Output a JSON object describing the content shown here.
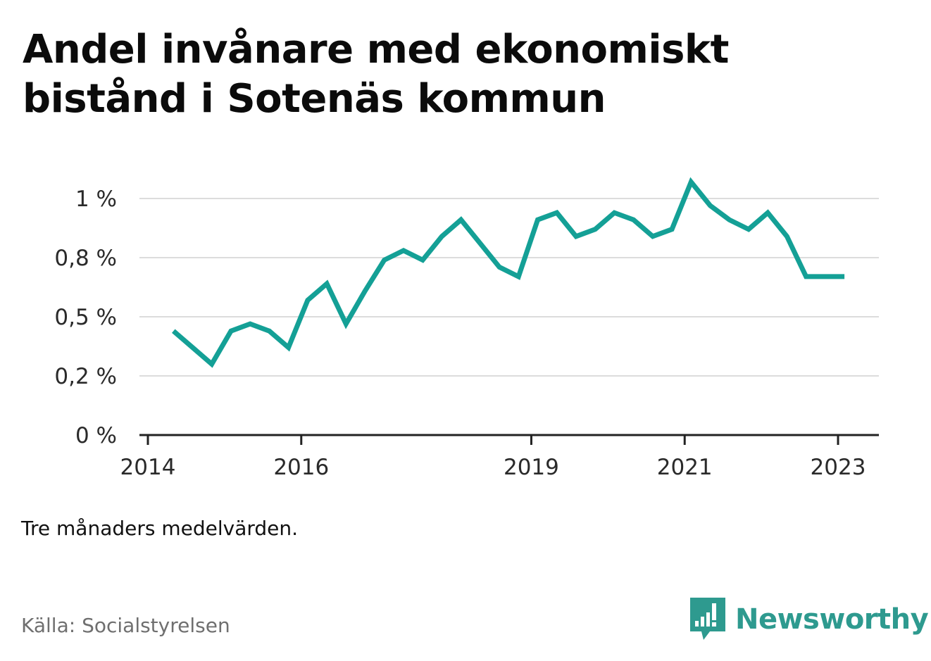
{
  "title": "Andel invånare med ekonomiskt bistånd i Sotenäs kommun",
  "note": "Tre månaders medelvärden.",
  "source": "Källa: Socialstyrelsen",
  "brand": {
    "name": "Newsworthy",
    "color": "#2e9a8f",
    "icon": "newsworthy-logo-icon"
  },
  "colors": {
    "line": "#14a096",
    "grid": "#dcdcdc",
    "axis": "#222222"
  },
  "chart_data": {
    "type": "line",
    "title": "Andel invånare med ekonomiskt bistånd i Sotenäs kommun",
    "xlabel": "",
    "ylabel": "",
    "x_ticks": [
      "2014",
      "2016",
      "2019",
      "2021",
      "2023"
    ],
    "y_ticks": [
      "0 %",
      "0,2 %",
      "0,5 %",
      "0,8 %",
      "1 %"
    ],
    "ylim": [
      0,
      1.07
    ],
    "grid": true,
    "series": [
      {
        "x": [
          "2014-05",
          "2014-08",
          "2014-11",
          "2015-02",
          "2015-05",
          "2015-08",
          "2015-11",
          "2016-02",
          "2016-05",
          "2016-08",
          "2016-11",
          "2017-02",
          "2017-05",
          "2017-08",
          "2017-11",
          "2018-02",
          "2018-05",
          "2018-08",
          "2018-11",
          "2019-02",
          "2019-05",
          "2019-08",
          "2019-11",
          "2020-02",
          "2020-05",
          "2020-08",
          "2020-11",
          "2021-02",
          "2021-05",
          "2021-08",
          "2021-11",
          "2022-02",
          "2022-05",
          "2022-08",
          "2022-11",
          "2023-02"
        ],
        "values": [
          0.44,
          0.37,
          0.3,
          0.44,
          0.47,
          0.44,
          0.37,
          0.57,
          0.64,
          0.47,
          0.61,
          0.74,
          0.78,
          0.74,
          0.84,
          0.91,
          0.81,
          0.71,
          0.67,
          0.91,
          0.94,
          0.84,
          0.87,
          0.94,
          0.91,
          0.84,
          0.87,
          1.07,
          0.97,
          0.91,
          0.87,
          0.94,
          0.84,
          0.67,
          0.67,
          0.67
        ]
      }
    ]
  }
}
